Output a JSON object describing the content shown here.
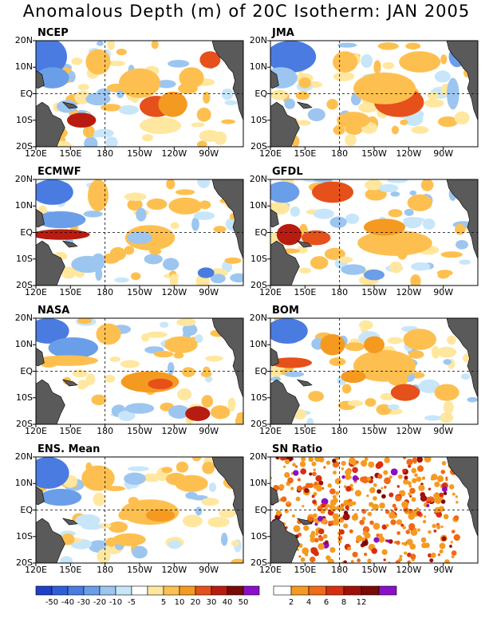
{
  "title": "Anomalous Depth (m) of 20C Isotherm: JAN 2005",
  "colors": {
    "land": "#5a5a5a",
    "dashed": "#000000",
    "scale": {
      "neg50": "#1f3fc8",
      "neg40": "#2f5fd8",
      "neg30": "#4a7be0",
      "neg20": "#6b9ee8",
      "neg10": "#9cc6f0",
      "neg5": "#c8e6fa",
      "zero": "#ffffff",
      "pos5": "#ffe7a0",
      "pos10": "#fdc050",
      "pos20": "#f59a20",
      "pos30": "#e6501a",
      "pos40": "#b81c10",
      "pos50": "#7a0a06",
      "max": "#8a0fc8"
    },
    "sn_scale": [
      "#ffffff",
      "#f59a20",
      "#f06a18",
      "#d63010",
      "#a01008",
      "#7a0a06",
      "#8a0fc8"
    ]
  },
  "chart_data": {
    "type": "heatmap",
    "title": "Anomalous Depth (m) of 20C Isotherm: JAN 2005",
    "x_ticks": [
      "120E",
      "150E",
      "180",
      "150W",
      "120W",
      "90W"
    ],
    "y_ticks": [
      "20N",
      "10N",
      "EQ",
      "10S",
      "20S"
    ],
    "colorbar_main": {
      "ticks": [
        "-50",
        "-40",
        "-30",
        "-20",
        "-10",
        "-5",
        "5",
        "10",
        "20",
        "30",
        "40",
        "50"
      ]
    },
    "colorbar_sn": {
      "ticks": [
        "2",
        "4",
        "6",
        "8",
        "12"
      ]
    },
    "panels": [
      {
        "name": "NCEP"
      },
      {
        "name": "JMA"
      },
      {
        "name": "ECMWF"
      },
      {
        "name": "GFDL"
      },
      {
        "name": "NASA"
      },
      {
        "name": "BOM"
      },
      {
        "name": "ENS. Mean"
      },
      {
        "name": "SN Ratio"
      }
    ]
  }
}
